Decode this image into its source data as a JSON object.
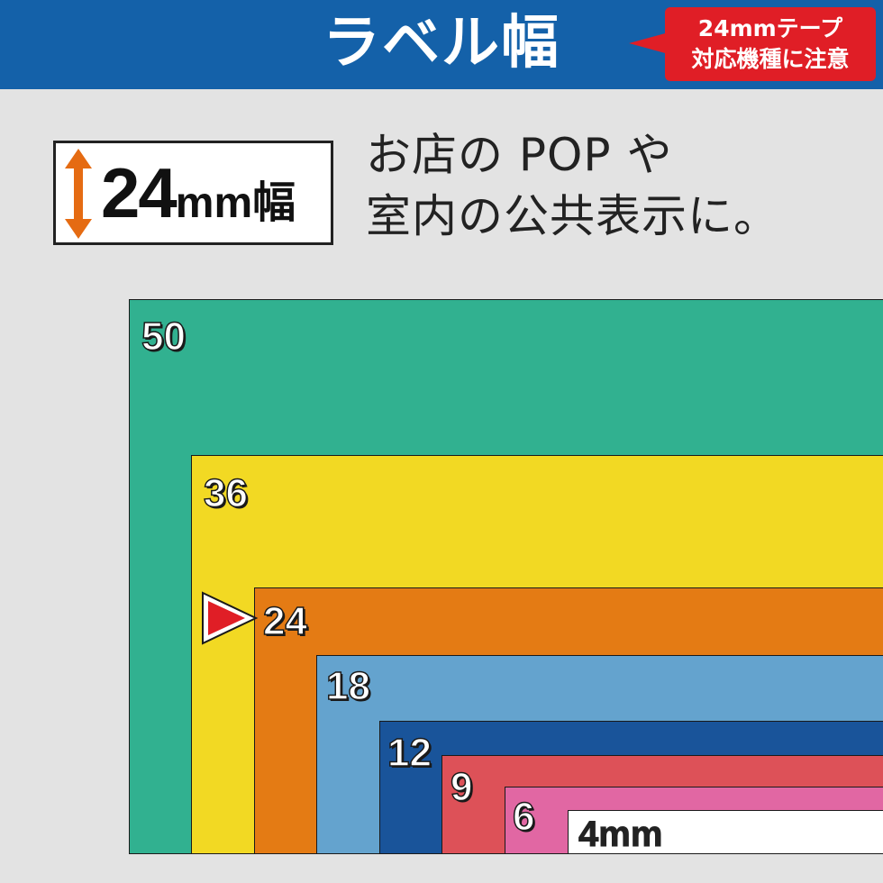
{
  "header": {
    "title": "ラベル幅",
    "background": "#1461a9",
    "badge_line1": "24mmテープ",
    "badge_line2": "対応機種に注意",
    "badge_color": "#e01e26"
  },
  "width_box": {
    "number": "24",
    "unit": "mm幅",
    "arrow_color": "#e56b12"
  },
  "tagline": {
    "line1": "お店の POP や",
    "line2": "室内の公共表示に。"
  },
  "stripes": [
    {
      "label": "50",
      "color": "#31b190"
    },
    {
      "label": "36",
      "color": "#f2d923"
    },
    {
      "label": "24",
      "color": "#e47b14"
    },
    {
      "label": "18",
      "color": "#64a3ce"
    },
    {
      "label": "12",
      "color": "#19549a"
    },
    {
      "label": "9",
      "color": "#dd5158"
    },
    {
      "label": "6",
      "color": "#e167a3"
    },
    {
      "label": "4mm",
      "color": "#ffffff"
    }
  ],
  "highlight_marker_color": "#e01e26"
}
